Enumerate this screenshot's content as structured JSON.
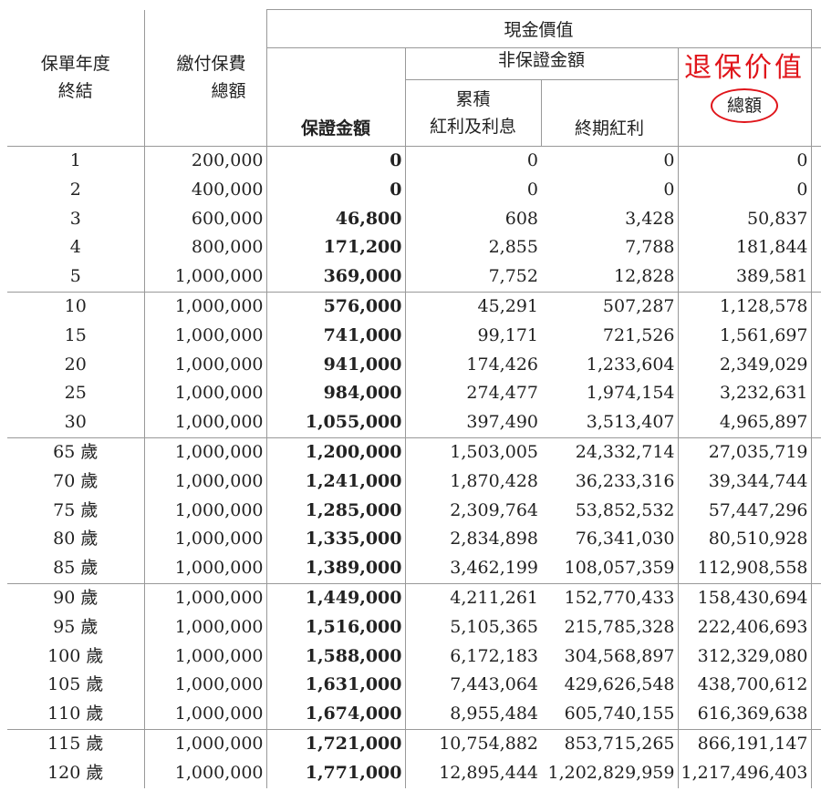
{
  "headers": {
    "policy_year_end_1": "保單年度",
    "policy_year_end_2": "終結",
    "premium_total_1": "繳付保費",
    "premium_total_2": "總額",
    "cash_value": "現金價值",
    "guaranteed_amount": "保證金額",
    "non_guaranteed": "非保證金額",
    "accumulated_1": "累積",
    "accumulated_2": "紅利及利息",
    "terminal_bonus": "終期紅利",
    "surrender_value_annotation": "退保价值",
    "total": "總額"
  },
  "colors": {
    "annotation": "#e0141a",
    "grid": "#999999"
  },
  "groups": [
    [
      [
        "1",
        "200,000",
        "0",
        "0",
        "0",
        "0"
      ],
      [
        "2",
        "400,000",
        "0",
        "0",
        "0",
        "0"
      ],
      [
        "3",
        "600,000",
        "46,800",
        "608",
        "3,428",
        "50,837"
      ],
      [
        "4",
        "800,000",
        "171,200",
        "2,855",
        "7,788",
        "181,844"
      ],
      [
        "5",
        "1,000,000",
        "369,000",
        "7,752",
        "12,828",
        "389,581"
      ]
    ],
    [
      [
        "10",
        "1,000,000",
        "576,000",
        "45,291",
        "507,287",
        "1,128,578"
      ],
      [
        "15",
        "1,000,000",
        "741,000",
        "99,171",
        "721,526",
        "1,561,697"
      ],
      [
        "20",
        "1,000,000",
        "941,000",
        "174,426",
        "1,233,604",
        "2,349,029"
      ],
      [
        "25",
        "1,000,000",
        "984,000",
        "274,477",
        "1,974,154",
        "3,232,631"
      ],
      [
        "30",
        "1,000,000",
        "1,055,000",
        "397,490",
        "3,513,407",
        "4,965,897"
      ]
    ],
    [
      [
        "65 歲",
        "1,000,000",
        "1,200,000",
        "1,503,005",
        "24,332,714",
        "27,035,719"
      ],
      [
        "70 歲",
        "1,000,000",
        "1,241,000",
        "1,870,428",
        "36,233,316",
        "39,344,744"
      ],
      [
        "75 歲",
        "1,000,000",
        "1,285,000",
        "2,309,764",
        "53,852,532",
        "57,447,296"
      ],
      [
        "80 歲",
        "1,000,000",
        "1,335,000",
        "2,834,898",
        "76,341,030",
        "80,510,928"
      ],
      [
        "85 歲",
        "1,000,000",
        "1,389,000",
        "3,462,199",
        "108,057,359",
        "112,908,558"
      ]
    ],
    [
      [
        "90 歲",
        "1,000,000",
        "1,449,000",
        "4,211,261",
        "152,770,433",
        "158,430,694"
      ],
      [
        "95 歲",
        "1,000,000",
        "1,516,000",
        "5,105,365",
        "215,785,328",
        "222,406,693"
      ],
      [
        "100 歲",
        "1,000,000",
        "1,588,000",
        "6,172,183",
        "304,568,897",
        "312,329,080"
      ],
      [
        "105 歲",
        "1,000,000",
        "1,631,000",
        "7,443,064",
        "429,626,548",
        "438,700,612"
      ],
      [
        "110 歲",
        "1,000,000",
        "1,674,000",
        "8,955,484",
        "605,740,155",
        "616,369,638"
      ]
    ],
    [
      [
        "115 歲",
        "1,000,000",
        "1,721,000",
        "10,754,882",
        "853,715,265",
        "866,191,147"
      ],
      [
        "120 歲",
        "1,000,000",
        "1,771,000",
        "12,895,444",
        "1,202,829,959",
        "1,217,496,403"
      ]
    ]
  ]
}
